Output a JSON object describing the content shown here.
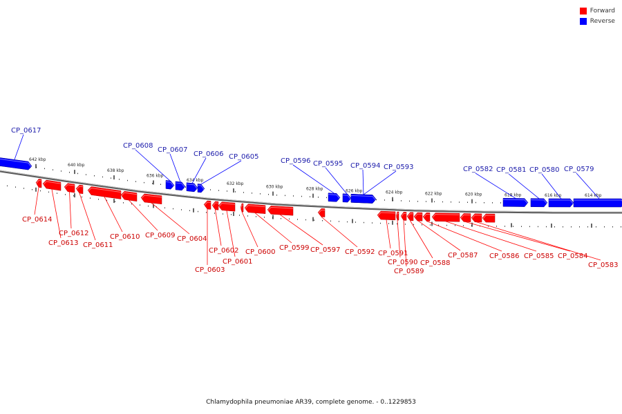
{
  "legend": {
    "forward_label": "Forward",
    "reverse_label": "Reverse",
    "forward_color": "#ff0000",
    "reverse_color": "#0000ff"
  },
  "caption": "Chlamydophila pneumoniae AR39, complete genome. - 0..1229853",
  "colors": {
    "forward": "#ff0000",
    "reverse": "#0000ff",
    "backbone": "#777777",
    "forward_text": "#cc0000",
    "reverse_text": "#1a1aaa"
  },
  "scale_ticks": [
    "642 kbp",
    "640 kbp",
    "638 kbp",
    "636 kbp",
    "634 kbp",
    "632 kbp",
    "630 kbp",
    "628 kbp",
    "626 kbp",
    "624 kbp",
    "622 kbp",
    "620 kbp",
    "618 kbp",
    "616 kbp",
    "614 kbp"
  ],
  "genes": [
    {
      "name": "CP_0617",
      "strand": "reverse",
      "labeled": true
    },
    {
      "name": "CP_0614",
      "strand": "forward",
      "labeled": true
    },
    {
      "name": "CP_0613",
      "strand": "forward",
      "labeled": true
    },
    {
      "name": "CP_0612",
      "strand": "forward",
      "labeled": true
    },
    {
      "name": "CP_0611",
      "strand": "forward",
      "labeled": true
    },
    {
      "name": "CP_0610",
      "strand": "forward",
      "labeled": true
    },
    {
      "name": "CP_0609",
      "strand": "forward",
      "labeled": true
    },
    {
      "name": "CP_0608",
      "strand": "reverse",
      "labeled": true
    },
    {
      "name": "CP_0607",
      "strand": "reverse",
      "labeled": true
    },
    {
      "name": "CP_0606",
      "strand": "reverse",
      "labeled": true
    },
    {
      "name": "CP_0605",
      "strand": "reverse",
      "labeled": true
    },
    {
      "name": "CP_0604",
      "strand": "forward",
      "labeled": true
    },
    {
      "name": "CP_0603",
      "strand": "forward",
      "labeled": true
    },
    {
      "name": "CP_0602",
      "strand": "forward",
      "labeled": true
    },
    {
      "name": "CP_0601",
      "strand": "forward",
      "labeled": true
    },
    {
      "name": "CP_0600",
      "strand": "forward",
      "labeled": true
    },
    {
      "name": "CP_0599",
      "strand": "forward",
      "labeled": true
    },
    {
      "name": "CP_0597",
      "strand": "forward",
      "labeled": true
    },
    {
      "name": "CP_0596",
      "strand": "reverse",
      "labeled": true
    },
    {
      "name": "CP_0595",
      "strand": "reverse",
      "labeled": true
    },
    {
      "name": "CP_0594",
      "strand": "reverse",
      "labeled": true
    },
    {
      "name": "CP_0593",
      "strand": "reverse",
      "labeled": true
    },
    {
      "name": "CP_0592",
      "strand": "forward",
      "labeled": true
    },
    {
      "name": "CP_0591",
      "strand": "forward",
      "labeled": true
    },
    {
      "name": "CP_0590",
      "strand": "forward",
      "labeled": true
    },
    {
      "name": "CP_0589",
      "strand": "forward",
      "labeled": true
    },
    {
      "name": "CP_0588",
      "strand": "forward",
      "labeled": true
    },
    {
      "name": "CP_0587",
      "strand": "forward",
      "labeled": true
    },
    {
      "name": "CP_0586",
      "strand": "forward",
      "labeled": true
    },
    {
      "name": "CP_0585",
      "strand": "forward",
      "labeled": true
    },
    {
      "name": "CP_0584",
      "strand": "forward",
      "labeled": true
    },
    {
      "name": "CP_0583",
      "strand": "forward",
      "labeled": true
    },
    {
      "name": "CP_0582",
      "strand": "reverse",
      "labeled": true
    },
    {
      "name": "CP_0581",
      "strand": "reverse",
      "labeled": true
    },
    {
      "name": "CP_0580",
      "strand": "reverse",
      "labeled": true
    },
    {
      "name": "CP_0579",
      "strand": "reverse",
      "labeled": true
    }
  ]
}
